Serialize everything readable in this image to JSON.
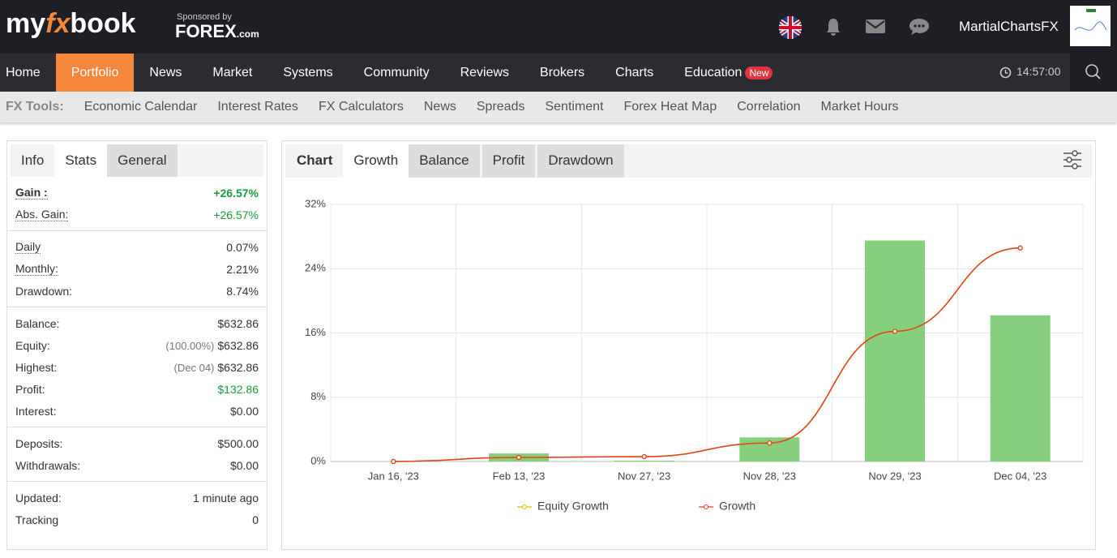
{
  "header": {
    "logo": [
      "my",
      "fx",
      "book"
    ],
    "sponsor": "Sponsored by",
    "sponsor_brand": [
      "FOREX",
      ".com"
    ],
    "user": "MartialChartsFX"
  },
  "nav": {
    "items": [
      "Home",
      "Portfolio",
      "News",
      "Market",
      "Systems",
      "Community",
      "Reviews",
      "Brokers",
      "Charts",
      "Education"
    ],
    "badge": "New",
    "time": "14:57:00"
  },
  "tools": {
    "label": "FX Tools:",
    "items": [
      "Economic Calendar",
      "Interest Rates",
      "FX Calculators",
      "News",
      "Spreads",
      "Sentiment",
      "Forex Heat Map",
      "Correlation",
      "Market Hours"
    ]
  },
  "stats": {
    "tabs": [
      "Info",
      "Stats",
      "General"
    ],
    "groups": [
      [
        {
          "label": "Gain :",
          "value": "+26.57%",
          "color": "#1a9c3e",
          "dotted": true,
          "bold": true
        },
        {
          "label": "Abs. Gain:",
          "value": "+26.57%",
          "color": "#1a9c3e",
          "dotted": true
        }
      ],
      [
        {
          "label": "Daily",
          "value": "0.07%",
          "dotted": true
        },
        {
          "label": "Monthly:",
          "value": "2.21%",
          "dotted": true
        },
        {
          "label": "Drawdown:",
          "value": "8.74%"
        }
      ],
      [
        {
          "label": "Balance:",
          "value": "$632.86"
        },
        {
          "label": "Equity:",
          "note": "(100.00%)",
          "value": "$632.86"
        },
        {
          "label": "Highest:",
          "note": "(Dec 04)",
          "value": "$632.86"
        },
        {
          "label": "Profit:",
          "value": "$132.86",
          "color": "#1a9c3e"
        },
        {
          "label": "Interest:",
          "value": "$0.00"
        }
      ],
      [
        {
          "label": "Deposits:",
          "value": "$500.00"
        },
        {
          "label": "Withdrawals:",
          "value": "$0.00"
        }
      ],
      [
        {
          "label": "Updated:",
          "value": "1 minute ago"
        },
        {
          "label": "Tracking",
          "value": "0"
        }
      ]
    ]
  },
  "chart": {
    "type": "bar-line",
    "tabs_label": "Chart",
    "tabs": [
      "Growth",
      "Balance",
      "Profit",
      "Drawdown"
    ],
    "categories": [
      "Jan 16, '23",
      "Feb 13, '23",
      "Nov 27, '23",
      "Nov 28, '23",
      "Nov 29, '23",
      "Dec 04, '23"
    ],
    "bars": {
      "color": "#86cf7e",
      "values": [
        0,
        1.0,
        0.1,
        3.0,
        27.5,
        18.2
      ]
    },
    "series": [
      {
        "name": "Equity Growth",
        "color": "#f0b400",
        "values": [
          0,
          0.5,
          0.6,
          2.3,
          16.2,
          26.57
        ]
      },
      {
        "name": "Growth",
        "color": "#e0401c",
        "values": [
          0,
          0.5,
          0.6,
          2.3,
          16.2,
          26.57
        ]
      }
    ],
    "ylim": [
      0,
      32
    ],
    "yticks": [
      {
        "value": 0,
        "label": "0%"
      },
      {
        "value": 8,
        "label": "8%"
      },
      {
        "value": 16,
        "label": "16%"
      },
      {
        "value": 24,
        "label": "24%"
      },
      {
        "value": 32,
        "label": "32%"
      }
    ],
    "grid": true
  }
}
